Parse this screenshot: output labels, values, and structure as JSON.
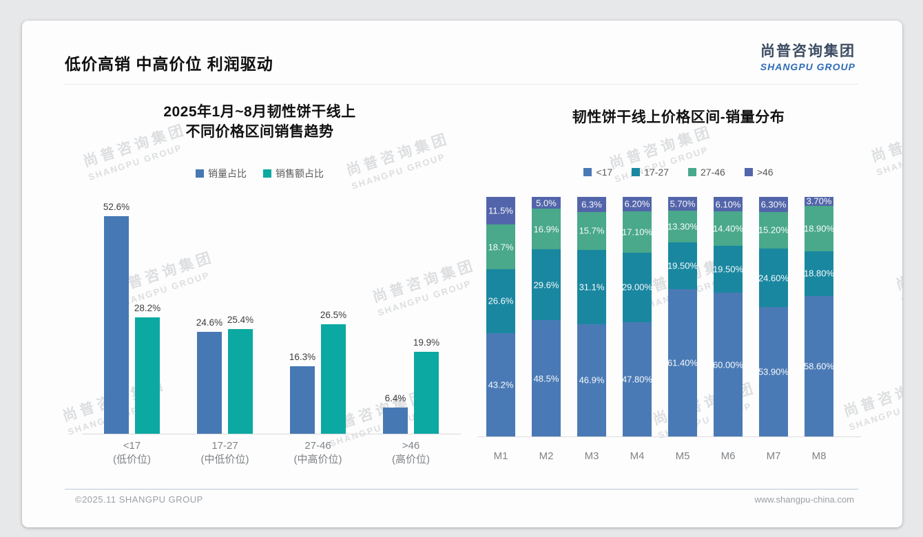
{
  "page": {
    "title": "低价高销 中高价位 利润驱动",
    "logo": {
      "cn": "尚普咨询集团",
      "en": "SHANGPU GROUP"
    },
    "watermark": {
      "cn": "尚普咨询集团",
      "en": "SHANGPU GROUP"
    },
    "footer": {
      "left": "©2025.11 SHANGPU GROUP",
      "right": "www.shangpu-china.com"
    }
  },
  "colors": {
    "volume_blue": "#4678b4",
    "revenue_teal": "#0ba9a1",
    "stack_lt17": "#4a7ab5",
    "stack_17_27": "#1a87a0",
    "stack_27_46": "#4aa88b",
    "stack_gt46": "#5365aa",
    "logo_navy": "#3c4b61",
    "logo_blue": "#2e6cb5"
  },
  "chart_data": [
    {
      "type": "bar",
      "stacked": false,
      "title_lines": [
        "2025年1月~8月韧性饼干线上",
        "不同价格区间销售趋势"
      ],
      "legend_position": "top",
      "grid": false,
      "ylim": [
        0,
        55
      ],
      "value_unit": "%",
      "categories": [
        {
          "range": "<17",
          "tier": "(低价位)"
        },
        {
          "range": "17-27",
          "tier": "(中低价位)"
        },
        {
          "range": "27-46",
          "tier": "(中高价位)"
        },
        {
          "range": ">46",
          "tier": "(高价位)"
        }
      ],
      "series": [
        {
          "name": "销量占比",
          "color": "#4678b4",
          "values": [
            52.6,
            24.6,
            16.3,
            6.4
          ],
          "labels": [
            "52.6%",
            "24.6%",
            "16.3%",
            "6.4%"
          ]
        },
        {
          "name": "销售额占比",
          "color": "#0ba9a1",
          "values": [
            28.2,
            25.4,
            26.5,
            19.9
          ],
          "labels": [
            "28.2%",
            "25.4%",
            "26.5%",
            "19.9%"
          ]
        }
      ]
    },
    {
      "type": "bar",
      "stacked": true,
      "percent_total": 100,
      "title_lines": [
        "韧性饼干线上价格区间-销量分布"
      ],
      "legend_position": "top",
      "grid": false,
      "ylim": [
        0,
        100
      ],
      "value_unit": "%",
      "categories": [
        "M1",
        "M2",
        "M3",
        "M4",
        "M5",
        "M6",
        "M7",
        "M8"
      ],
      "series": [
        {
          "name": "<17",
          "color": "#4a7ab5",
          "values": [
            43.2,
            48.5,
            46.9,
            47.8,
            61.4,
            60.0,
            53.9,
            58.6
          ],
          "labels": [
            "43.2%",
            "48.5%",
            "46.9%",
            "47.80%",
            "61.40%",
            "60.00%",
            "53.90%",
            "58.60%"
          ]
        },
        {
          "name": "17-27",
          "color": "#1a87a0",
          "values": [
            26.6,
            29.6,
            31.1,
            29.0,
            19.5,
            19.5,
            24.6,
            18.8
          ],
          "labels": [
            "26.6%",
            "29.6%",
            "31.1%",
            "29.00%",
            "19.50%",
            "19.50%",
            "24.60%",
            "18.80%"
          ]
        },
        {
          "name": "27-46",
          "color": "#4aa88b",
          "values": [
            18.7,
            16.9,
            15.7,
            17.1,
            13.3,
            14.4,
            15.2,
            18.9
          ],
          "labels": [
            "18.7%",
            "16.9%",
            "15.7%",
            "17.10%",
            "13.30%",
            "14.40%",
            "15.20%",
            "18.90%"
          ]
        },
        {
          "name": ">46",
          "color": "#5365aa",
          "values": [
            11.5,
            5.0,
            6.3,
            6.2,
            5.7,
            6.1,
            6.3,
            3.7
          ],
          "labels": [
            "11.5%",
            "5.0%",
            "6.3%",
            "6.20%",
            "5.70%",
            "6.10%",
            "6.30%",
            "3.70%"
          ]
        }
      ]
    }
  ]
}
